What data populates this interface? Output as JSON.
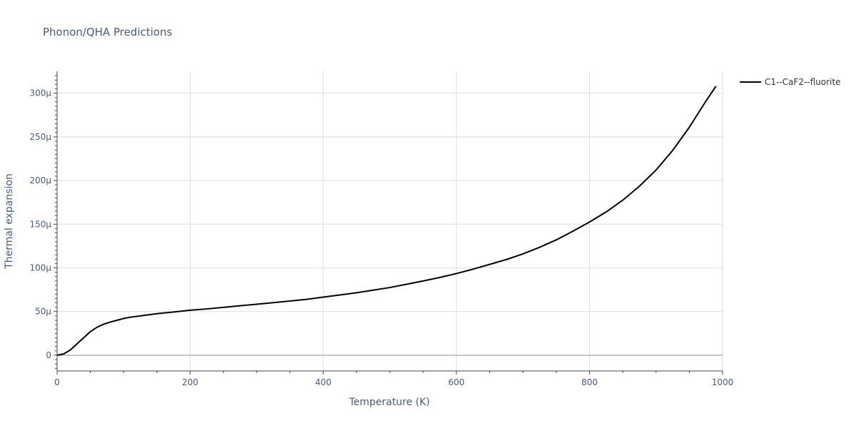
{
  "chart_data": {
    "type": "line",
    "title": "Phonon/QHA Predictions",
    "xlabel": "Temperature (K)",
    "ylabel": "Thermal expansion",
    "xlim": [
      0,
      1000
    ],
    "ylim": [
      -1.8e-05,
      0.000325
    ],
    "x_ticks": [
      0,
      200,
      400,
      600,
      800,
      1000
    ],
    "x_tick_labels": [
      "0",
      "200",
      "400",
      "600",
      "800",
      "1000"
    ],
    "y_ticks": [
      0,
      5e-05,
      0.0001,
      0.00015,
      0.0002,
      0.00025,
      0.0003
    ],
    "y_tick_labels": [
      "0",
      "50µ",
      "100µ",
      "150µ",
      "200µ",
      "250µ",
      "300µ"
    ],
    "grid": true,
    "legend_position": "top-right",
    "series": [
      {
        "name": "C1--CaF2--fluorite",
        "color": "#000000",
        "x": [
          0,
          10,
          20,
          30,
          40,
          50,
          60,
          70,
          80,
          90,
          100,
          110,
          125,
          150,
          175,
          200,
          225,
          250,
          275,
          300,
          325,
          350,
          375,
          400,
          425,
          450,
          475,
          500,
          525,
          550,
          575,
          600,
          625,
          650,
          675,
          700,
          725,
          750,
          775,
          800,
          825,
          850,
          875,
          900,
          925,
          950,
          975,
          990
        ],
        "y": [
          0,
          1.5e-06,
          6e-06,
          1.3e-05,
          2e-05,
          2.7e-05,
          3.2e-05,
          3.55e-05,
          3.8e-05,
          4e-05,
          4.2e-05,
          4.35e-05,
          4.5e-05,
          4.75e-05,
          4.95e-05,
          5.15e-05,
          5.3e-05,
          5.48e-05,
          5.66e-05,
          5.84e-05,
          6.02e-05,
          6.2e-05,
          6.4e-05,
          6.65e-05,
          6.9e-05,
          7.15e-05,
          7.45e-05,
          7.75e-05,
          8.12e-05,
          8.5e-05,
          8.9e-05,
          9.35e-05,
          9.85e-05,
          0.000104,
          0.0001095,
          0.000116,
          0.0001235,
          0.000132,
          0.000142,
          0.0001525,
          0.000164,
          0.0001775,
          0.0001935,
          0.000212,
          0.0002345,
          0.000261,
          0.000291,
          0.000308
        ]
      }
    ]
  }
}
